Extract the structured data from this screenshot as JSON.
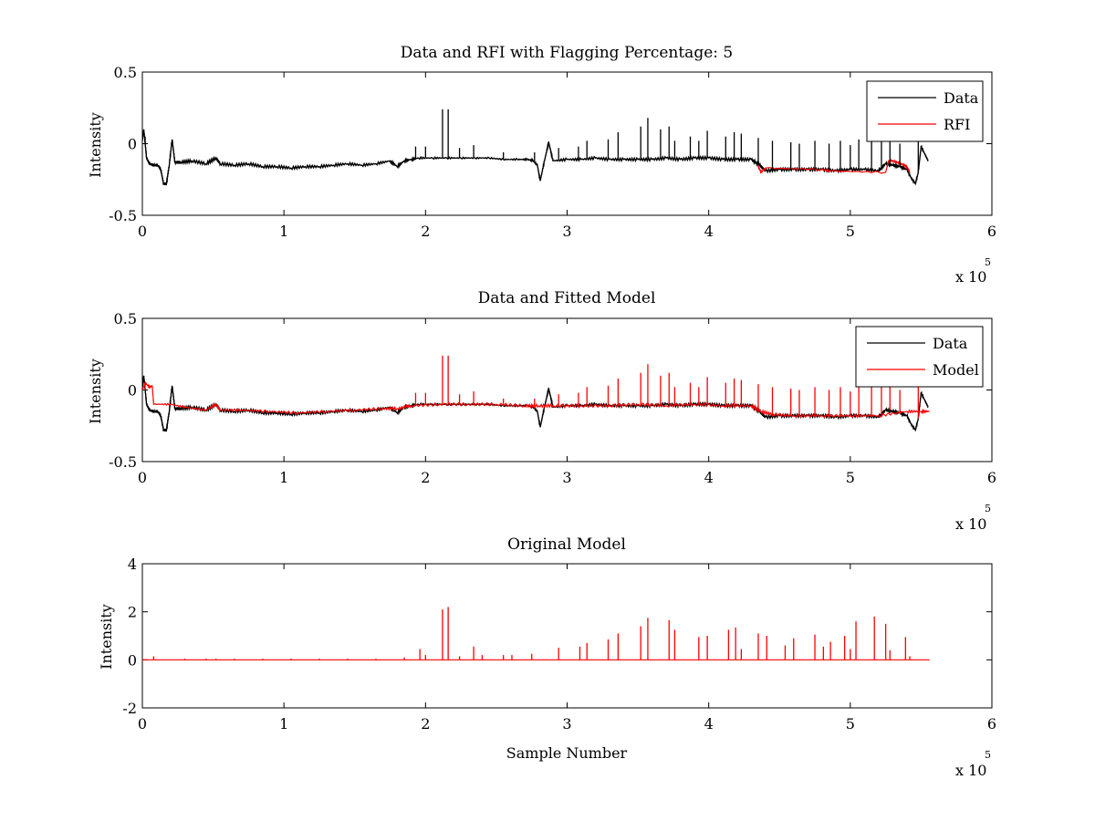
{
  "chart_data": [
    {
      "type": "line",
      "title": "Data and RFI with Flagging Percentage: 5",
      "xlabel": "",
      "ylabel": "Intensity",
      "xlim": [
        0,
        6
      ],
      "ylim": [
        -0.5,
        0.5
      ],
      "x_ticks": [
        "0",
        "1",
        "2",
        "3",
        "4",
        "5",
        "6"
      ],
      "y_ticks": [
        "-0.5",
        "0",
        "0.5"
      ],
      "x_exponent": {
        "base": "x 10",
        "power": "5"
      },
      "grid": false,
      "legend_position": "top-right",
      "legend": [
        {
          "label": "Data",
          "color": "#000000"
        },
        {
          "label": "RFI",
          "color": "#ff0000"
        }
      ],
      "series": [
        {
          "name": "Data",
          "color": "#000000",
          "x": [
            0.0,
            0.01,
            0.03,
            0.05,
            0.08,
            0.11,
            0.13,
            0.15,
            0.17,
            0.19,
            0.21,
            0.23,
            0.27,
            0.35,
            0.45,
            0.52,
            0.55,
            0.65,
            0.75,
            0.85,
            0.95,
            1.05,
            1.15,
            1.25,
            1.35,
            1.45,
            1.55,
            1.65,
            1.75,
            1.8,
            1.85,
            1.9,
            1.95,
            2.05,
            2.15,
            2.25,
            2.35,
            2.45,
            2.55,
            2.65,
            2.72,
            2.76,
            2.79,
            2.81,
            2.84,
            2.87,
            2.9,
            3.0,
            3.1,
            3.2,
            3.3,
            3.4,
            3.5,
            3.6,
            3.7,
            3.8,
            3.9,
            4.0,
            4.1,
            4.2,
            4.3,
            4.36,
            4.4,
            4.5,
            4.6,
            4.7,
            4.8,
            4.9,
            5.0,
            5.1,
            5.2,
            5.25,
            5.3,
            5.35,
            5.4,
            5.43,
            5.46,
            5.48,
            5.5,
            5.53,
            5.55
          ],
          "y": [
            0.02,
            0.1,
            -0.1,
            -0.14,
            -0.15,
            -0.15,
            -0.18,
            -0.28,
            -0.28,
            -0.15,
            0.03,
            -0.13,
            -0.13,
            -0.12,
            -0.14,
            -0.1,
            -0.14,
            -0.15,
            -0.14,
            -0.16,
            -0.16,
            -0.17,
            -0.16,
            -0.16,
            -0.15,
            -0.14,
            -0.15,
            -0.14,
            -0.12,
            -0.16,
            -0.12,
            -0.11,
            -0.1,
            -0.1,
            -0.1,
            -0.1,
            -0.1,
            -0.1,
            -0.11,
            -0.11,
            -0.11,
            -0.12,
            -0.15,
            -0.26,
            -0.12,
            0.01,
            -0.12,
            -0.11,
            -0.11,
            -0.1,
            -0.11,
            -0.11,
            -0.11,
            -0.11,
            -0.1,
            -0.11,
            -0.1,
            -0.1,
            -0.11,
            -0.11,
            -0.11,
            -0.15,
            -0.19,
            -0.18,
            -0.18,
            -0.18,
            -0.18,
            -0.19,
            -0.18,
            -0.18,
            -0.19,
            -0.14,
            -0.15,
            -0.16,
            -0.18,
            -0.24,
            -0.28,
            -0.2,
            -0.02,
            -0.08,
            -0.12
          ]
        },
        {
          "name": "RFI",
          "color": "#ff0000",
          "x": [
            4.35,
            4.37,
            4.4,
            4.8,
            4.85,
            5.25,
            5.27,
            5.3,
            5.33,
            5.36,
            5.4,
            5.42
          ],
          "y": [
            -0.16,
            -0.2,
            -0.17,
            -0.18,
            -0.19,
            -0.2,
            -0.12,
            -0.12,
            -0.13,
            -0.14,
            -0.16,
            -0.2
          ]
        }
      ],
      "spikes": [
        {
          "x": 0.02,
          "y": 0.05
        },
        {
          "x": 1.93,
          "y": -0.02
        },
        {
          "x": 2.0,
          "y": -0.02
        },
        {
          "x": 2.12,
          "y": 0.24
        },
        {
          "x": 2.16,
          "y": 0.24
        },
        {
          "x": 2.24,
          "y": -0.03
        },
        {
          "x": 2.34,
          "y": -0.01
        },
        {
          "x": 2.55,
          "y": -0.06
        },
        {
          "x": 2.77,
          "y": -0.06
        },
        {
          "x": 2.94,
          "y": -0.03
        },
        {
          "x": 3.08,
          "y": -0.02
        },
        {
          "x": 3.14,
          "y": 0.02
        },
        {
          "x": 3.29,
          "y": 0.03
        },
        {
          "x": 3.36,
          "y": 0.08
        },
        {
          "x": 3.52,
          "y": 0.12
        },
        {
          "x": 3.57,
          "y": 0.18
        },
        {
          "x": 3.66,
          "y": 0.1
        },
        {
          "x": 3.72,
          "y": 0.12
        },
        {
          "x": 3.76,
          "y": 0.02
        },
        {
          "x": 3.87,
          "y": 0.05
        },
        {
          "x": 3.93,
          "y": 0.02
        },
        {
          "x": 3.99,
          "y": 0.09
        },
        {
          "x": 4.12,
          "y": 0.05
        },
        {
          "x": 4.18,
          "y": 0.08
        },
        {
          "x": 4.23,
          "y": 0.07
        },
        {
          "x": 4.35,
          "y": 0.04
        },
        {
          "x": 4.45,
          "y": 0.02
        },
        {
          "x": 4.58,
          "y": 0.01
        },
        {
          "x": 4.64,
          "y": 0.0
        },
        {
          "x": 4.75,
          "y": 0.02
        },
        {
          "x": 4.85,
          "y": 0.0
        },
        {
          "x": 4.93,
          "y": 0.02
        },
        {
          "x": 5.0,
          "y": -0.01
        },
        {
          "x": 5.06,
          "y": 0.03
        },
        {
          "x": 5.15,
          "y": 0.03
        },
        {
          "x": 5.22,
          "y": 0.04
        },
        {
          "x": 5.28,
          "y": 0.02
        },
        {
          "x": 5.35,
          "y": 0.0
        },
        {
          "x": 5.48,
          "y": 0.05
        }
      ]
    },
    {
      "type": "line",
      "title": "Data and Fitted Model",
      "xlabel": "",
      "ylabel": "Intensity",
      "xlim": [
        0,
        6
      ],
      "ylim": [
        -0.5,
        0.5
      ],
      "x_ticks": [
        "0",
        "1",
        "2",
        "3",
        "4",
        "5",
        "6"
      ],
      "y_ticks": [
        "-0.5",
        "0",
        "0.5"
      ],
      "x_exponent": {
        "base": "x 10",
        "power": "5"
      },
      "grid": false,
      "legend_position": "top-right",
      "legend": [
        {
          "label": "Data",
          "color": "#000000"
        },
        {
          "label": "Model",
          "color": "#ff0000"
        }
      ],
      "series": [
        {
          "name": "Data",
          "color": "#000000",
          "x": [
            0.0,
            0.01,
            0.03,
            0.05,
            0.08,
            0.11,
            0.13,
            0.15,
            0.17,
            0.19,
            0.21,
            0.23,
            0.27,
            0.35,
            0.45,
            0.52,
            0.55,
            0.65,
            0.75,
            0.85,
            0.95,
            1.05,
            1.15,
            1.25,
            1.35,
            1.45,
            1.55,
            1.65,
            1.75,
            1.8,
            1.85,
            1.9,
            1.95,
            2.05,
            2.15,
            2.25,
            2.35,
            2.45,
            2.55,
            2.65,
            2.72,
            2.76,
            2.79,
            2.81,
            2.84,
            2.87,
            2.9,
            3.0,
            3.1,
            3.2,
            3.3,
            3.4,
            3.5,
            3.6,
            3.7,
            3.8,
            3.9,
            4.0,
            4.1,
            4.2,
            4.3,
            4.36,
            4.4,
            4.5,
            4.6,
            4.7,
            4.8,
            4.9,
            5.0,
            5.1,
            5.2,
            5.25,
            5.3,
            5.35,
            5.4,
            5.43,
            5.46,
            5.48,
            5.5,
            5.53,
            5.55
          ],
          "y": [
            0.02,
            0.1,
            -0.1,
            -0.14,
            -0.15,
            -0.15,
            -0.18,
            -0.28,
            -0.28,
            -0.15,
            0.03,
            -0.13,
            -0.13,
            -0.12,
            -0.14,
            -0.1,
            -0.14,
            -0.15,
            -0.14,
            -0.16,
            -0.16,
            -0.17,
            -0.16,
            -0.16,
            -0.15,
            -0.14,
            -0.15,
            -0.14,
            -0.12,
            -0.16,
            -0.12,
            -0.11,
            -0.1,
            -0.1,
            -0.1,
            -0.1,
            -0.1,
            -0.1,
            -0.11,
            -0.11,
            -0.11,
            -0.12,
            -0.15,
            -0.26,
            -0.12,
            0.01,
            -0.12,
            -0.11,
            -0.11,
            -0.1,
            -0.11,
            -0.11,
            -0.11,
            -0.11,
            -0.1,
            -0.11,
            -0.1,
            -0.1,
            -0.11,
            -0.11,
            -0.11,
            -0.15,
            -0.19,
            -0.18,
            -0.18,
            -0.18,
            -0.18,
            -0.19,
            -0.18,
            -0.18,
            -0.19,
            -0.14,
            -0.15,
            -0.16,
            -0.18,
            -0.24,
            -0.28,
            -0.2,
            -0.02,
            -0.08,
            -0.12
          ]
        },
        {
          "name": "Model",
          "color": "#ff0000",
          "x": [
            0.0,
            0.02,
            0.05,
            0.07,
            0.08,
            0.2,
            0.3,
            0.45,
            0.52,
            0.55,
            0.7,
            0.9,
            1.1,
            1.3,
            1.5,
            1.7,
            1.8,
            1.9,
            2.1,
            2.3,
            2.5,
            2.7,
            2.8,
            2.9,
            3.1,
            3.3,
            3.5,
            3.7,
            3.9,
            4.1,
            4.3,
            4.37,
            4.45,
            4.6,
            4.8,
            5.0,
            5.2,
            5.4,
            5.5,
            5.56
          ],
          "y": [
            0.0,
            0.05,
            0.02,
            0.03,
            -0.1,
            -0.1,
            -0.12,
            -0.14,
            -0.1,
            -0.14,
            -0.14,
            -0.15,
            -0.16,
            -0.15,
            -0.14,
            -0.13,
            -0.13,
            -0.11,
            -0.1,
            -0.1,
            -0.1,
            -0.11,
            -0.11,
            -0.11,
            -0.11,
            -0.11,
            -0.1,
            -0.11,
            -0.1,
            -0.11,
            -0.11,
            -0.15,
            -0.17,
            -0.18,
            -0.18,
            -0.18,
            -0.18,
            -0.15,
            -0.15,
            -0.15
          ]
        }
      ],
      "spikes": [
        {
          "x": 0.02,
          "y": 0.05
        },
        {
          "x": 1.93,
          "y": -0.02
        },
        {
          "x": 2.0,
          "y": -0.02
        },
        {
          "x": 2.12,
          "y": 0.24
        },
        {
          "x": 2.16,
          "y": 0.24
        },
        {
          "x": 2.24,
          "y": -0.03
        },
        {
          "x": 2.34,
          "y": -0.01
        },
        {
          "x": 2.55,
          "y": -0.06
        },
        {
          "x": 2.77,
          "y": -0.06
        },
        {
          "x": 2.94,
          "y": -0.03
        },
        {
          "x": 3.08,
          "y": -0.02
        },
        {
          "x": 3.14,
          "y": 0.02
        },
        {
          "x": 3.29,
          "y": 0.03
        },
        {
          "x": 3.36,
          "y": 0.08
        },
        {
          "x": 3.52,
          "y": 0.12
        },
        {
          "x": 3.57,
          "y": 0.18
        },
        {
          "x": 3.66,
          "y": 0.1
        },
        {
          "x": 3.72,
          "y": 0.12
        },
        {
          "x": 3.76,
          "y": 0.02
        },
        {
          "x": 3.87,
          "y": 0.05
        },
        {
          "x": 3.93,
          "y": 0.02
        },
        {
          "x": 3.99,
          "y": 0.09
        },
        {
          "x": 4.12,
          "y": 0.05
        },
        {
          "x": 4.18,
          "y": 0.08
        },
        {
          "x": 4.23,
          "y": 0.07
        },
        {
          "x": 4.35,
          "y": 0.04
        },
        {
          "x": 4.45,
          "y": 0.02
        },
        {
          "x": 4.58,
          "y": 0.01
        },
        {
          "x": 4.64,
          "y": 0.0
        },
        {
          "x": 4.75,
          "y": 0.02
        },
        {
          "x": 4.85,
          "y": 0.0
        },
        {
          "x": 4.93,
          "y": 0.02
        },
        {
          "x": 5.0,
          "y": -0.01
        },
        {
          "x": 5.06,
          "y": 0.03
        },
        {
          "x": 5.15,
          "y": 0.03
        },
        {
          "x": 5.22,
          "y": 0.04
        },
        {
          "x": 5.28,
          "y": 0.02
        },
        {
          "x": 5.35,
          "y": 0.0
        },
        {
          "x": 5.48,
          "y": 0.05
        }
      ]
    },
    {
      "type": "line",
      "title": "Original Model",
      "xlabel": "Sample Number",
      "ylabel": "Intensity",
      "xlim": [
        0,
        6
      ],
      "ylim": [
        -2,
        4
      ],
      "x_ticks": [
        "0",
        "1",
        "2",
        "3",
        "4",
        "5",
        "6"
      ],
      "y_ticks": [
        "-2",
        "0",
        "2",
        "4"
      ],
      "x_exponent": {
        "base": "x 10",
        "power": "5"
      },
      "grid": false,
      "series": [
        {
          "name": "",
          "color": "#ff0000",
          "x": [
            0.0,
            5.56
          ],
          "y": [
            0.0,
            0.0
          ]
        }
      ],
      "spikes": [
        {
          "x": 0.08,
          "y": 0.15
        },
        {
          "x": 0.3,
          "y": 0.05
        },
        {
          "x": 0.45,
          "y": 0.05
        },
        {
          "x": 0.52,
          "y": 0.05
        },
        {
          "x": 0.65,
          "y": 0.05
        },
        {
          "x": 0.85,
          "y": 0.05
        },
        {
          "x": 1.05,
          "y": 0.05
        },
        {
          "x": 1.25,
          "y": 0.05
        },
        {
          "x": 1.45,
          "y": 0.05
        },
        {
          "x": 1.65,
          "y": 0.05
        },
        {
          "x": 1.85,
          "y": 0.1
        },
        {
          "x": 1.96,
          "y": 0.45
        },
        {
          "x": 2.0,
          "y": 0.2
        },
        {
          "x": 2.12,
          "y": 2.1
        },
        {
          "x": 2.16,
          "y": 2.2
        },
        {
          "x": 2.24,
          "y": 0.15
        },
        {
          "x": 2.34,
          "y": 0.55
        },
        {
          "x": 2.4,
          "y": 0.2
        },
        {
          "x": 2.55,
          "y": 0.2
        },
        {
          "x": 2.61,
          "y": 0.2
        },
        {
          "x": 2.75,
          "y": 0.25
        },
        {
          "x": 2.94,
          "y": 0.5
        },
        {
          "x": 3.09,
          "y": 0.55
        },
        {
          "x": 3.14,
          "y": 0.7
        },
        {
          "x": 3.29,
          "y": 0.85
        },
        {
          "x": 3.36,
          "y": 1.1
        },
        {
          "x": 3.52,
          "y": 1.4
        },
        {
          "x": 3.57,
          "y": 1.75
        },
        {
          "x": 3.72,
          "y": 1.65
        },
        {
          "x": 3.76,
          "y": 1.25
        },
        {
          "x": 3.93,
          "y": 0.95
        },
        {
          "x": 3.99,
          "y": 1.0
        },
        {
          "x": 4.14,
          "y": 1.25
        },
        {
          "x": 4.19,
          "y": 1.35
        },
        {
          "x": 4.23,
          "y": 0.45
        },
        {
          "x": 4.35,
          "y": 1.1
        },
        {
          "x": 4.41,
          "y": 1.0
        },
        {
          "x": 4.54,
          "y": 0.6
        },
        {
          "x": 4.6,
          "y": 0.9
        },
        {
          "x": 4.75,
          "y": 1.05
        },
        {
          "x": 4.81,
          "y": 0.55
        },
        {
          "x": 4.86,
          "y": 0.75
        },
        {
          "x": 4.96,
          "y": 1.0
        },
        {
          "x": 5.0,
          "y": 0.45
        },
        {
          "x": 5.04,
          "y": 1.6
        },
        {
          "x": 5.17,
          "y": 1.8
        },
        {
          "x": 5.25,
          "y": 1.5
        },
        {
          "x": 5.28,
          "y": 0.4
        },
        {
          "x": 5.39,
          "y": 0.95
        },
        {
          "x": 5.42,
          "y": 0.15
        }
      ]
    }
  ]
}
